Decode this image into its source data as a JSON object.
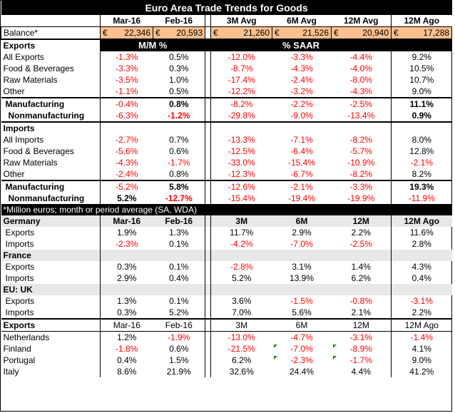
{
  "title": "Euro Area Trade Trends for Goods",
  "header": [
    "Mar-16",
    "Feb-16",
    "3M Avg",
    "6M Avg",
    "12M Avg",
    "12M Ago"
  ],
  "balance": {
    "label": "Balance*",
    "currency": "€",
    "values": [
      "22,346",
      "20,593",
      "21,260",
      "21,526",
      "20,940",
      "17,288"
    ]
  },
  "exports_section": {
    "label": "Exports",
    "mm_label": "M/M %",
    "saar_label": "% SAAR"
  },
  "export_rows": [
    {
      "label": "All Exports",
      "v": [
        "-1.3%",
        "0.5%",
        "-12.0%",
        "-3.3%",
        "-4.4%",
        "9.2%"
      ]
    },
    {
      "label": "Food & Beverages",
      "v": [
        "-3.3%",
        "0.3%",
        "-8.7%",
        "-4.3%",
        "-4.0%",
        "10.5%"
      ]
    },
    {
      "label": "Raw Materials",
      "v": [
        "-3.5%",
        "1.0%",
        "-17.4%",
        "-2.4%",
        "-8.0%",
        "10.7%"
      ]
    },
    {
      "label": "Other",
      "v": [
        "-1.1%",
        "0.5%",
        "-12.2%",
        "-3.2%",
        "-4.3%",
        "9.0%"
      ]
    }
  ],
  "export_mfg": [
    {
      "label": "Manufacturing",
      "v": [
        "-0.4%",
        "0.8%",
        "-8.2%",
        "-2.2%",
        "-2.5%",
        "11.1%"
      ]
    },
    {
      "label": "Nonmanufacturing",
      "v": [
        "-6.3%",
        "-1.2%",
        "-29.8%",
        "-9.0%",
        "-13.4%",
        "0.9%"
      ]
    }
  ],
  "imports_label": "Imports",
  "import_rows": [
    {
      "label": "All Imports",
      "v": [
        "-2.7%",
        "0.7%",
        "-13.3%",
        "-7.1%",
        "-8.2%",
        "8.0%"
      ]
    },
    {
      "label": "Food  & Beverages",
      "v": [
        "-5.6%",
        "0.6%",
        "-12.5%",
        "-6.4%",
        "-5.7%",
        "12.8%"
      ]
    },
    {
      "label": "Raw Materials",
      "v": [
        "-4.3%",
        "-1.7%",
        "-33.0%",
        "-15.4%",
        "-10.9%",
        "-2.1%"
      ]
    },
    {
      "label": "Other",
      "v": [
        "-2.4%",
        "0.8%",
        "-12.3%",
        "-6.7%",
        "-8.2%",
        "8.2%"
      ]
    }
  ],
  "import_mfg": [
    {
      "label": "Manufacturing",
      "v": [
        "-5.2%",
        "5.8%",
        "-12.6%",
        "-2.1%",
        "-3.3%",
        "19.3%"
      ]
    },
    {
      "label": "Nonmanufacturing",
      "v": [
        "5.2%",
        "-12.7%",
        "-15.4%",
        "-19.4%",
        "-19.9%",
        "-11.9%"
      ]
    }
  ],
  "note": "*Million euros; month or period average (SA, WDA)",
  "country_header": [
    "Mar-16",
    "Feb-16",
    "3M",
    "6M",
    "12M",
    "12M Ago"
  ],
  "countries": [
    {
      "name": "Germany",
      "rows": [
        {
          "label": "Exports",
          "v": [
            "1.9%",
            "1.3%",
            "11.7%",
            "2.9%",
            "2.2%",
            "11.6%"
          ]
        },
        {
          "label": "Imports",
          "v": [
            "-2.3%",
            "0.1%",
            "-4.2%",
            "-7.0%",
            "-2.5%",
            "2.8%"
          ]
        }
      ]
    },
    {
      "name": "France",
      "rows": [
        {
          "label": "Exports",
          "v": [
            "0.3%",
            "0.1%",
            "-2.8%",
            "3.1%",
            "1.4%",
            "4.3%"
          ]
        },
        {
          "label": "Imports",
          "v": [
            "2.9%",
            "0.4%",
            "5.2%",
            "13.9%",
            "6.2%",
            "0.4%"
          ]
        }
      ]
    },
    {
      "name": "EU: UK",
      "rows": [
        {
          "label": "Exports",
          "v": [
            "1.3%",
            "0.1%",
            "3.6%",
            "-1.5%",
            "-0.8%",
            "-3.1%"
          ]
        },
        {
          "label": "Imports",
          "v": [
            "0.3%",
            "5.2%",
            "7.0%",
            "5.6%",
            "2.1%",
            "2.2%"
          ]
        }
      ]
    }
  ],
  "exports2_label": "Exports",
  "exports2_header": [
    "Mar-16",
    "Feb-16",
    "3M",
    "6M",
    "12M",
    "12M Ago"
  ],
  "exports2": [
    {
      "label": "Netherlands",
      "v": [
        "1.2%",
        "-1.9%",
        "-13.0%",
        "-4.7%",
        "-3.1%",
        "-1.4%"
      ]
    },
    {
      "label": "Finland",
      "v": [
        "-1.8%",
        "0.6%",
        "-21.5%",
        "-7.0%",
        "-8.9%",
        "4.1%"
      ]
    },
    {
      "label": "Portugal",
      "v": [
        "0.4%",
        "1.5%",
        "6.2%",
        "-2.3%",
        "-1.7%",
        "9.0%"
      ]
    },
    {
      "label": "Italy",
      "v": [
        "8.6%",
        "21.9%",
        "32.6%",
        "24.4%",
        "4.4%",
        "41.2%"
      ]
    }
  ],
  "colors": {
    "negative": "#ff0000",
    "balance_fill": "#fbc08d",
    "header_bg": "#000000"
  }
}
